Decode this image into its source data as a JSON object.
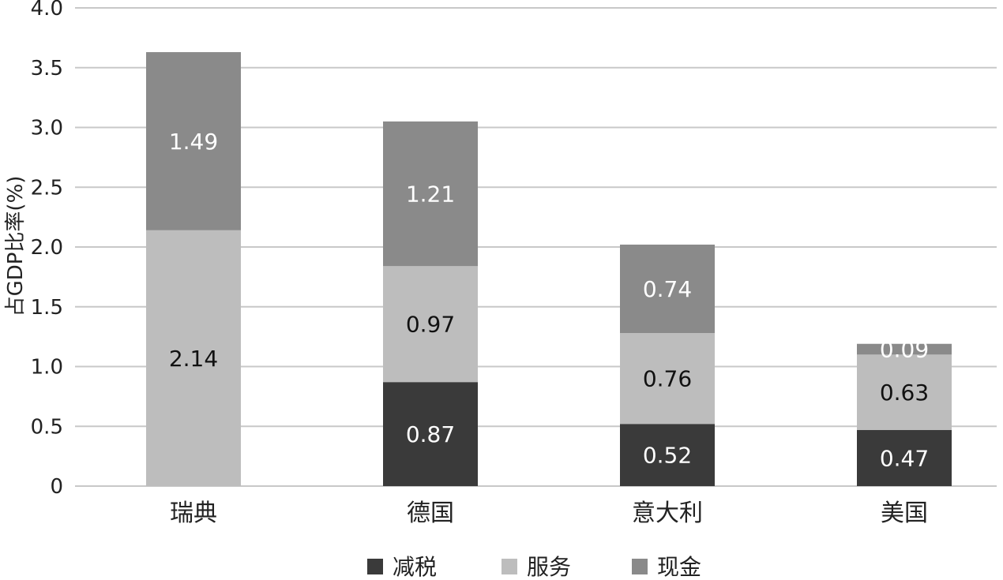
{
  "chart_data": {
    "type": "bar",
    "stacked": true,
    "title": "",
    "xlabel": "",
    "ylabel": "占GDP比率(%)",
    "ylim": [
      0,
      4.0
    ],
    "yticks": [
      "0",
      "0.5",
      "1.0",
      "1.5",
      "2.0",
      "2.5",
      "3.0",
      "3.5",
      "4.0"
    ],
    "grid": true,
    "legend_position": "bottom",
    "categories": [
      "瑞典",
      "德国",
      "意大利",
      "美国"
    ],
    "series": [
      {
        "name": "减税",
        "color": "#3a3a3a",
        "label_color": "#ffffff",
        "values": [
          0,
          0.87,
          0.52,
          0.47
        ],
        "labels": [
          "",
          "0.87",
          "0.52",
          "0.47"
        ]
      },
      {
        "name": "服务",
        "color": "#bdbdbd",
        "label_color": "#111111",
        "values": [
          2.14,
          0.97,
          0.76,
          0.63
        ],
        "labels": [
          "2.14",
          "0.97",
          "0.76",
          "0.63"
        ]
      },
      {
        "name": "现金",
        "color": "#8a8a8a",
        "label_color": "#ffffff",
        "values": [
          1.49,
          1.21,
          0.74,
          0.09
        ],
        "labels": [
          "1.49",
          "1.21",
          "0.74",
          "0.09"
        ]
      }
    ]
  }
}
